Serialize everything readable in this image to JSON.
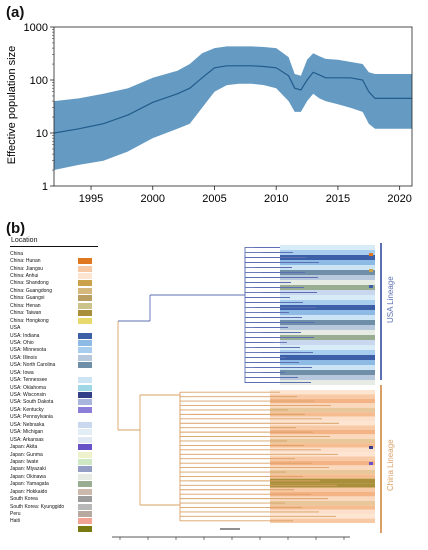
{
  "panel_a_label": "(a)",
  "panel_b_label": "(b)",
  "chart_data": [
    {
      "type": "area",
      "title": "",
      "xlabel": "",
      "ylabel": "Effective population size",
      "yscale": "log",
      "xlim": [
        1992,
        2021
      ],
      "ylim": [
        1,
        1000
      ],
      "x_ticks": [
        1995,
        2000,
        2005,
        2010,
        2015,
        2020
      ],
      "y_ticks": [
        1,
        10,
        100,
        1000
      ],
      "grid": false,
      "series": [
        {
          "x": [
            1992,
            1994,
            1996,
            1998,
            2000,
            2002,
            2003,
            2004,
            2005,
            2006,
            2007,
            2008,
            2009,
            2010,
            2011,
            2011.5,
            2012,
            2012.5,
            2013,
            2013.5,
            2014,
            2015,
            2016,
            2017,
            2017.5,
            2018,
            2019,
            2020,
            2021
          ],
          "median": [
            10,
            12,
            15,
            22,
            38,
            55,
            70,
            110,
            170,
            185,
            185,
            185,
            180,
            170,
            120,
            70,
            65,
            100,
            140,
            125,
            110,
            110,
            110,
            100,
            60,
            45,
            45,
            45,
            45
          ],
          "lower": [
            2,
            2.5,
            3,
            4.5,
            8,
            12,
            15,
            30,
            60,
            80,
            85,
            85,
            80,
            70,
            40,
            25,
            25,
            40,
            55,
            45,
            40,
            35,
            30,
            25,
            15,
            12,
            12,
            12,
            12
          ],
          "upper": [
            40,
            45,
            55,
            70,
            110,
            150,
            200,
            320,
            400,
            430,
            430,
            430,
            420,
            400,
            270,
            130,
            120,
            240,
            320,
            280,
            250,
            240,
            220,
            200,
            140,
            130,
            130,
            130,
            130
          ]
        }
      ],
      "colors": {
        "band": "#4a89b9",
        "line": "#225c8c"
      }
    },
    {
      "type": "tree",
      "legend_title": "Location",
      "legend": [
        {
          "label": "China",
          "color": "#ffffff"
        },
        {
          "label": "China: Hunan",
          "color": "#e0781f"
        },
        {
          "label": "China: Jiangsu",
          "color": "#f7c9a5"
        },
        {
          "label": "China: Anhui",
          "color": "#fde5d2"
        },
        {
          "label": "China: Shandong",
          "color": "#c9a24a"
        },
        {
          "label": "China: Guangdong",
          "color": "#d6b77c"
        },
        {
          "label": "China: Guangxi",
          "color": "#b9a062"
        },
        {
          "label": "China: Henan",
          "color": "#ccc38b"
        },
        {
          "label": "China: Taiwan",
          "color": "#a98f3a"
        },
        {
          "label": "China: Hongkong",
          "color": "#e7d96c"
        },
        {
          "label": "USA",
          "color": "#ffffff"
        },
        {
          "label": "USA: Indiana",
          "color": "#3d5fa8"
        },
        {
          "label": "USA: Ohio",
          "color": "#8dbbe6"
        },
        {
          "label": "USA: Minnesota",
          "color": "#a9cdee"
        },
        {
          "label": "USA: Illinois",
          "color": "#b7c7dc"
        },
        {
          "label": "USA: North Carolina",
          "color": "#6e8fa7"
        },
        {
          "label": "USA: Iowa",
          "color": "#ffffff"
        },
        {
          "label": "USA: Tennessee",
          "color": "#cce4f3"
        },
        {
          "label": "USA: Oklahoma",
          "color": "#9fd7e6"
        },
        {
          "label": "USA: Wisconsin",
          "color": "#333f86"
        },
        {
          "label": "USA: South Dakota",
          "color": "#a8b5dc"
        },
        {
          "label": "USA: Kentucky",
          "color": "#8b7fd9"
        },
        {
          "label": "USA: Pennsylvania",
          "color": "#ffffff"
        },
        {
          "label": "USA: Nebraska",
          "color": "#c9d8ee"
        },
        {
          "label": "USA: Michigan",
          "color": "#e3edf6"
        },
        {
          "label": "USA: Arkansas",
          "color": "#dfe8f3"
        },
        {
          "label": "Japan: Akita",
          "color": "#6951c8"
        },
        {
          "label": "Japan: Gunma",
          "color": "#eef2cc"
        },
        {
          "label": "Japan: Iwate",
          "color": "#cfe8c4"
        },
        {
          "label": "Japan: Miyazaki",
          "color": "#949dc4"
        },
        {
          "label": "Japan: Okinawa",
          "color": "#e6ece3"
        },
        {
          "label": "Japan: Yamagata",
          "color": "#98ad92"
        },
        {
          "label": "Japan: Hokkaido",
          "color": "#cbb9ad"
        },
        {
          "label": "South Korea",
          "color": "#9c9c9c"
        },
        {
          "label": "South Korea: Kyunggido",
          "color": "#b8b8b8"
        },
        {
          "label": "Peru",
          "color": "#b7a9a0"
        },
        {
          "label": "Haiti",
          "color": "#f2a394"
        },
        {
          "label": "",
          "color": "#7a7a12"
        }
      ],
      "clades": [
        {
          "name": "USA Lineage",
          "color": "#5b6fb2"
        },
        {
          "name": "China Lineage",
          "color": "#d9a066"
        }
      ]
    }
  ]
}
